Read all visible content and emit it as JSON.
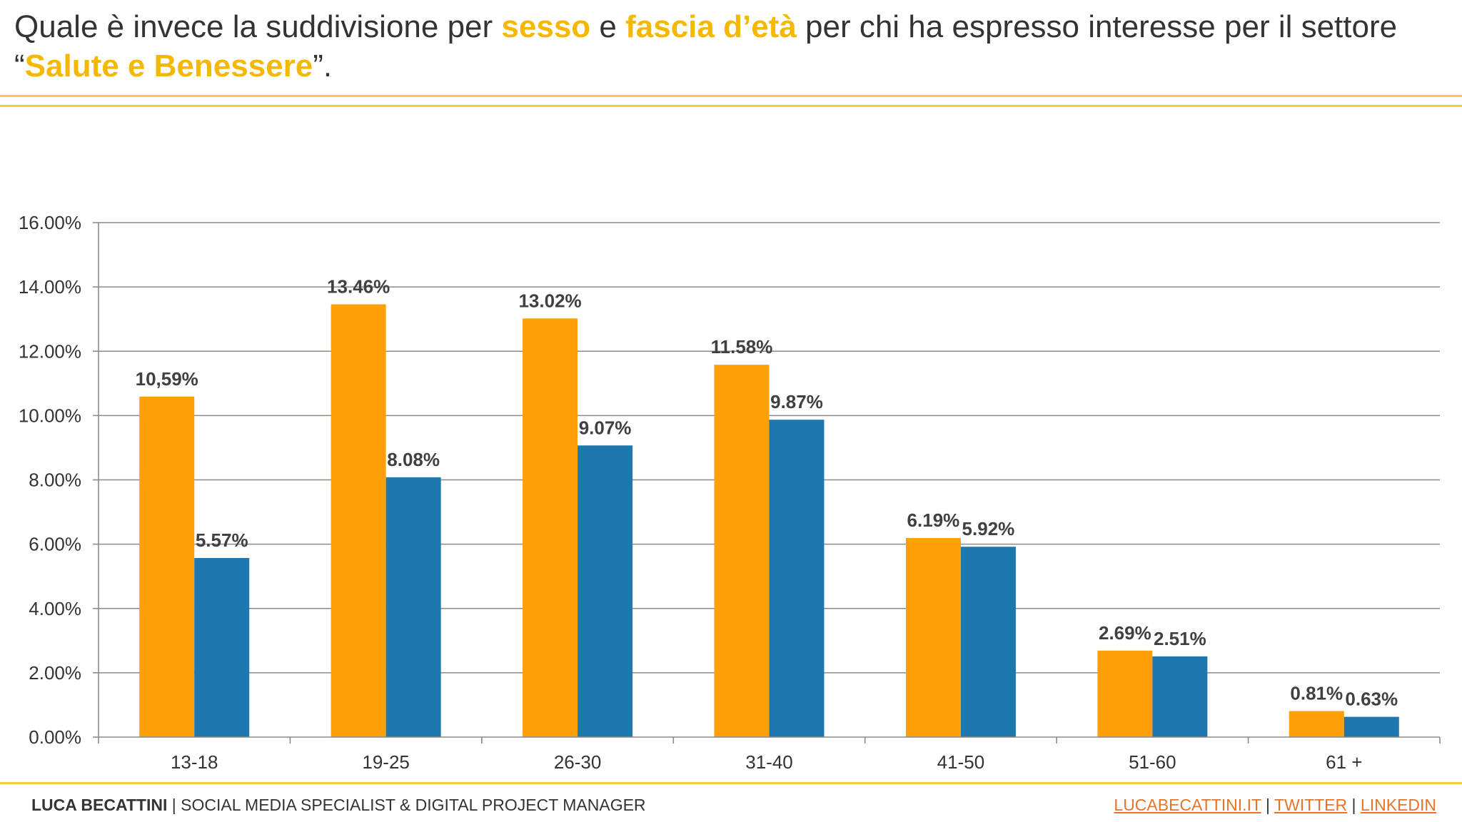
{
  "title": {
    "part1": "Quale è invece la suddivisione per ",
    "hl1": "sesso",
    "part2": " e ",
    "hl2": "fascia d’età",
    "part3": " per chi ha espresso interesse per il settore “",
    "hl3": "Salute e Benessere",
    "part4": "”."
  },
  "footer": {
    "name": "LUCA BECATTINI",
    "role": " | SOCIAL MEDIA SPECIALIST & DIGITAL PROJECT MANAGER",
    "separator": " | ",
    "links": [
      "LUCABECATTINI.IT",
      "TWITTER",
      "LINKEDIN"
    ]
  },
  "colors": {
    "accent": "#f5b800",
    "rule": "#f6c944",
    "series1": "#ffa008",
    "series2": "#1f78ad",
    "grid": "#8a8a8a",
    "link": "#e8732a"
  },
  "chart_data": {
    "type": "bar",
    "title": "",
    "xlabel": "",
    "ylabel": "",
    "ylim": [
      0,
      16
    ],
    "yticks": [
      0,
      2,
      4,
      6,
      8,
      10,
      12,
      14,
      16
    ],
    "ytick_labels": [
      "0.00%",
      "2.00%",
      "4.00%",
      "6.00%",
      "8.00%",
      "10.00%",
      "12.00%",
      "14.00%",
      "16.00%"
    ],
    "grid": true,
    "categories": [
      "13-18",
      "19-25",
      "26-30",
      "31-40",
      "41-50",
      "51-60",
      "61 +"
    ],
    "series": [
      {
        "name": "series 1",
        "color": "#ffa008",
        "values": [
          10.59,
          13.46,
          13.02,
          11.58,
          6.19,
          2.69,
          0.81
        ],
        "labels": [
          "10,59%",
          "13.46%",
          "13.02%",
          "11.58%",
          "6.19%",
          "2.69%",
          "0.81%"
        ]
      },
      {
        "name": "series 2",
        "color": "#1f78ad",
        "values": [
          5.57,
          8.08,
          9.07,
          9.87,
          5.92,
          2.51,
          0.63
        ],
        "labels": [
          "5.57%",
          "8.08%",
          "9.07%",
          "9.87%",
          "5.92%",
          "2.51%",
          "0.63%"
        ]
      }
    ]
  }
}
